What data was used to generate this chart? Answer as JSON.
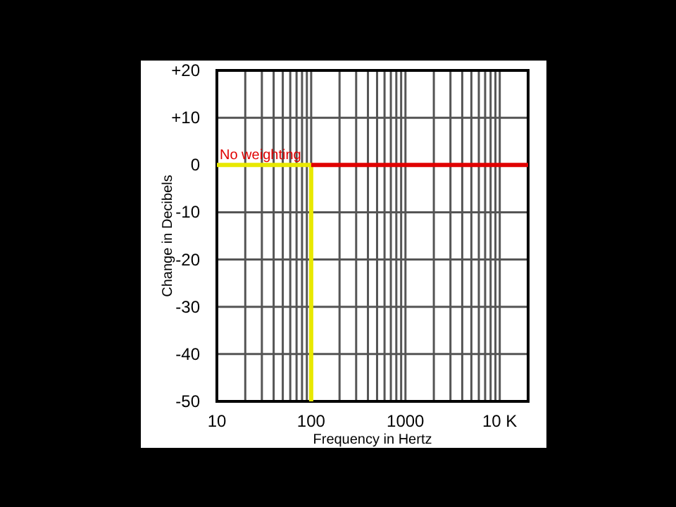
{
  "chart_data": {
    "type": "line",
    "xlabel": "Frequency in Hertz",
    "ylabel": "Change in Decibels",
    "log": "x",
    "grid": true,
    "xlim": [
      10,
      20000
    ],
    "ylim": [
      -50,
      20
    ],
    "xticks": [
      10,
      {
        "value": 20,
        "label": null
      },
      {
        "value": 30,
        "label": null
      },
      {
        "value": 40,
        "label": null
      },
      {
        "value": 50,
        "label": null
      },
      {
        "value": 60,
        "label": null
      },
      {
        "value": 70,
        "label": null
      },
      {
        "value": 80,
        "label": null
      },
      {
        "value": 90,
        "label": null
      },
      100,
      {
        "value": 200,
        "label": null
      },
      {
        "value": 300,
        "label": null
      },
      {
        "value": 400,
        "label": null
      },
      {
        "value": 500,
        "label": null
      },
      {
        "value": 600,
        "label": null
      },
      {
        "value": 700,
        "label": null
      },
      {
        "value": 800,
        "label": null
      },
      {
        "value": 900,
        "label": null
      },
      1000,
      {
        "value": 2000,
        "label": null
      },
      {
        "value": 3000,
        "label": null
      },
      {
        "value": 4000,
        "label": null
      },
      {
        "value": 5000,
        "label": null
      },
      {
        "value": 6000,
        "label": null
      },
      {
        "value": 7000,
        "label": null
      },
      {
        "value": 8000,
        "label": null
      },
      {
        "value": 9000,
        "label": null
      },
      {
        "value": 10000,
        "label": "10 K"
      }
    ],
    "yticks": [
      {
        "value": 20,
        "label": "+20"
      },
      {
        "value": 10,
        "label": "+10"
      },
      0,
      -10,
      -20,
      -30,
      -40,
      -50
    ],
    "series": [
      {
        "color": "#e8e800",
        "x": [
          10,
          100,
          100
        ],
        "values": [
          0,
          0,
          -50
        ]
      },
      {
        "color": "#e00000",
        "x": [
          100,
          20000
        ],
        "values": [
          0,
          0
        ]
      }
    ],
    "annotations": [
      {
        "text": "No weighting",
        "x": 10,
        "y": 0
      }
    ]
  }
}
